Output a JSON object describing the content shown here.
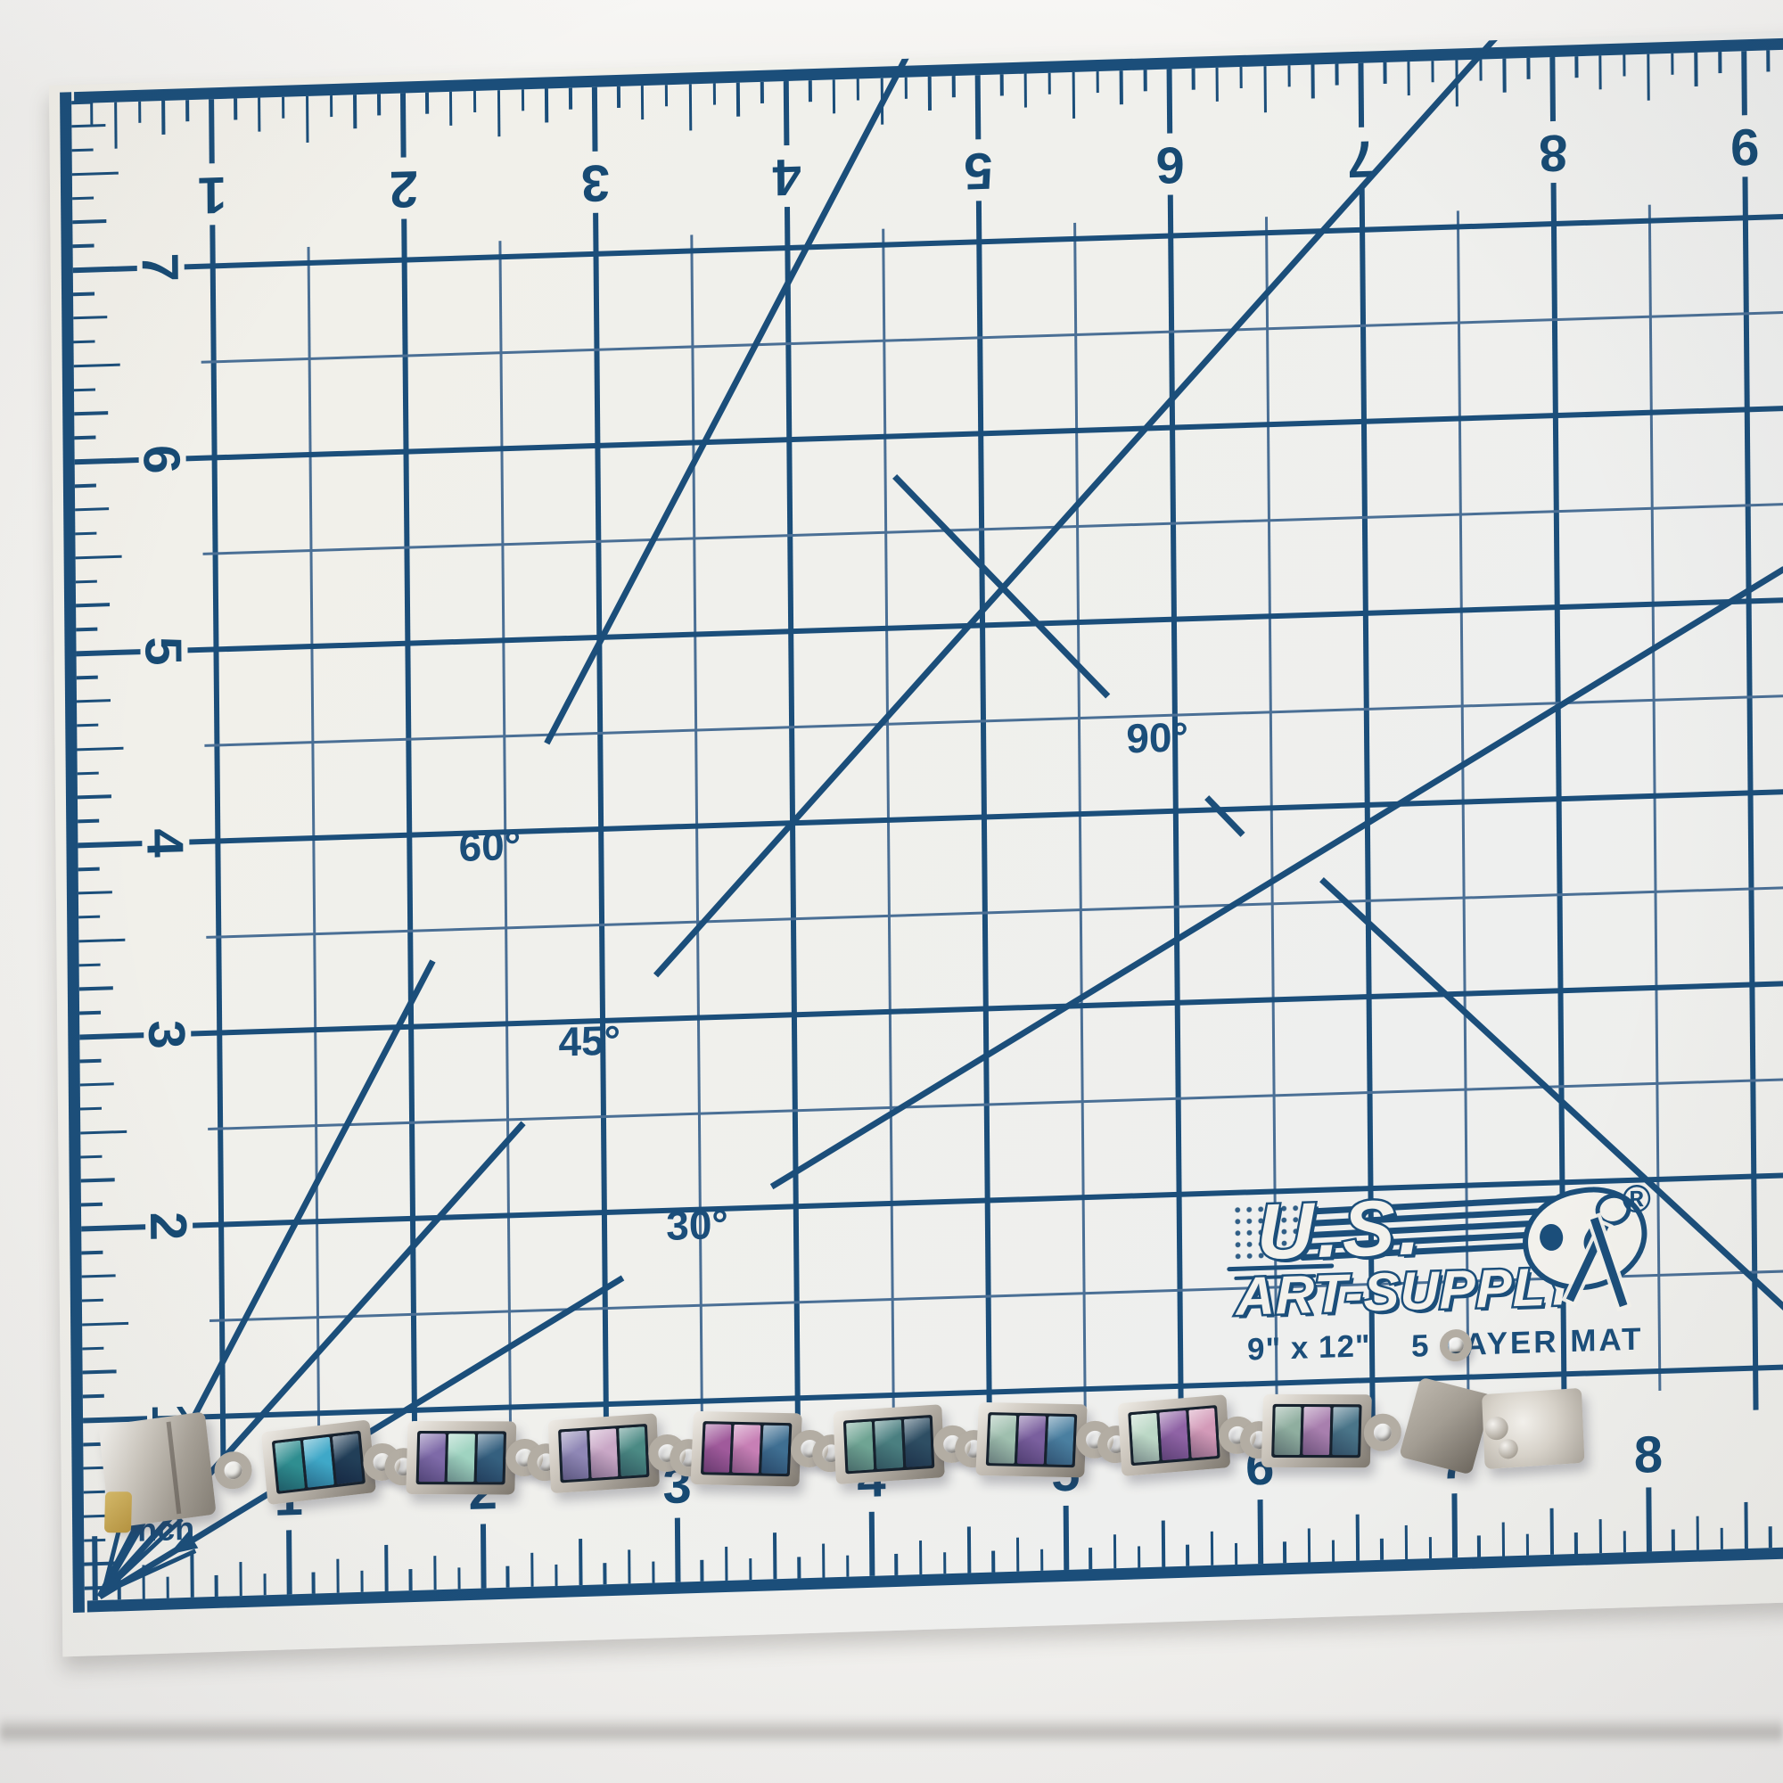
{
  "mat": {
    "surface_color": "#f0efe9",
    "ink_color": "#1b4e7a",
    "unit_label": "inch",
    "brand": {
      "line1": "U.S.",
      "line2": "ART-SUPPLY",
      "registered_mark": "®",
      "size_label": "9\" x 12\"",
      "layer_label": "5 LAYER MAT"
    },
    "rulers": {
      "top_numbers": [
        "1",
        "2",
        "3",
        "4",
        "5",
        "6",
        "7",
        "8",
        "9"
      ],
      "left_numbers": [
        "7",
        "6",
        "5",
        "4",
        "3",
        "2",
        "1"
      ],
      "bottom_numbers": [
        "1",
        "2",
        "3",
        "4",
        "5",
        "6",
        "7",
        "8"
      ]
    },
    "angle_labels": [
      "30°",
      "45°",
      "60°",
      "90°"
    ]
  },
  "bracelet": {
    "metal_color": "#b3ada3",
    "gold_accent": "#c2a14e",
    "links": [
      {
        "segments": [
          "#2f8f91",
          "#3fa9c9",
          "#223f58"
        ]
      },
      {
        "segments": [
          "#7e6aa8",
          "#9fd3c0",
          "#35607f"
        ]
      },
      {
        "segments": [
          "#8f87b5",
          "#c9a7c6",
          "#4b8a84"
        ]
      },
      {
        "segments": [
          "#a05a9b",
          "#c77fb5",
          "#3f6f92"
        ]
      },
      {
        "segments": [
          "#6fa493",
          "#4a7f80",
          "#2e4e63"
        ]
      },
      {
        "segments": [
          "#9fbfae",
          "#7a5f9e",
          "#4a7fa0"
        ]
      },
      {
        "segments": [
          "#bcd8c6",
          "#8f63a5",
          "#d39ab8"
        ]
      },
      {
        "segments": [
          "#8fae9f",
          "#a87fae",
          "#4a7589"
        ]
      }
    ]
  }
}
